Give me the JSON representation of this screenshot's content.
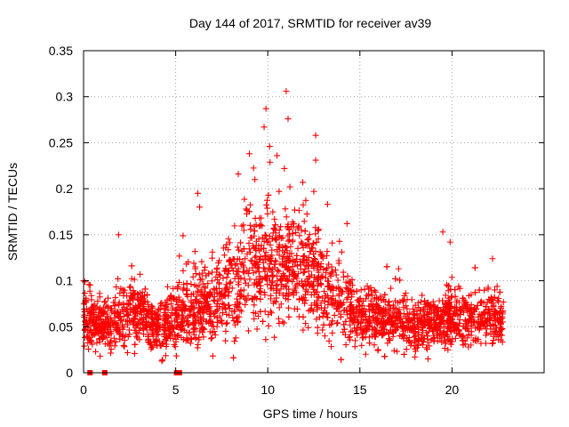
{
  "chart_data": {
    "type": "scatter",
    "title": "Day 144 of 2017, SRMTID for receiver av39",
    "xlabel": "GPS time / hours",
    "ylabel": "SRMTID / TECUs",
    "xlim": [
      0,
      25
    ],
    "ylim": [
      0,
      0.35
    ],
    "xticks": [
      0,
      5,
      10,
      15,
      20
    ],
    "xtick_labels": [
      "0",
      "5",
      "10",
      "15",
      "20"
    ],
    "yticks": [
      0,
      0.05,
      0.1,
      0.15,
      0.2,
      0.25,
      0.3,
      0.35
    ],
    "ytick_labels": [
      "0",
      "0.05",
      "0.1",
      "0.15",
      "0.2",
      "0.25",
      "0.3",
      "0.35"
    ],
    "grid": true,
    "marker": "plus",
    "color": "#ff0000",
    "data_range_hours": [
      0,
      22.8
    ],
    "zero_points_x": [
      0.35,
      1.15,
      5.05,
      5.2
    ],
    "series": [
      {
        "name": "SRMTID",
        "envelope": {
          "x": [
            0,
            1,
            2,
            3,
            4,
            5,
            6,
            7,
            8,
            9,
            10,
            11,
            12,
            13,
            14,
            15,
            16,
            17,
            18,
            19,
            20,
            21,
            22,
            22.8
          ],
          "median": [
            0.06,
            0.052,
            0.062,
            0.068,
            0.048,
            0.06,
            0.072,
            0.07,
            0.09,
            0.115,
            0.118,
            0.115,
            0.112,
            0.095,
            0.078,
            0.062,
            0.058,
            0.056,
            0.052,
            0.052,
            0.062,
            0.058,
            0.058,
            0.055
          ],
          "spread": [
            0.02,
            0.02,
            0.022,
            0.022,
            0.018,
            0.022,
            0.028,
            0.028,
            0.035,
            0.04,
            0.042,
            0.04,
            0.038,
            0.032,
            0.028,
            0.022,
            0.02,
            0.02,
            0.018,
            0.018,
            0.022,
            0.02,
            0.02,
            0.018
          ]
        },
        "density_per_hour": 130,
        "notable_points": [
          {
            "x": 11.0,
            "y": 0.306
          },
          {
            "x": 11.1,
            "y": 0.276
          },
          {
            "x": 9.9,
            "y": 0.287
          },
          {
            "x": 9.8,
            "y": 0.267
          },
          {
            "x": 12.6,
            "y": 0.258
          },
          {
            "x": 10.1,
            "y": 0.246
          },
          {
            "x": 9.0,
            "y": 0.238
          },
          {
            "x": 12.6,
            "y": 0.231
          },
          {
            "x": 10.5,
            "y": 0.236
          },
          {
            "x": 10.9,
            "y": 0.222
          },
          {
            "x": 8.4,
            "y": 0.216
          },
          {
            "x": 11.2,
            "y": 0.202
          },
          {
            "x": 9.3,
            "y": 0.21
          },
          {
            "x": 11.9,
            "y": 0.207
          },
          {
            "x": 12.5,
            "y": 0.197
          },
          {
            "x": 6.2,
            "y": 0.195
          },
          {
            "x": 6.3,
            "y": 0.18
          },
          {
            "x": 1.9,
            "y": 0.15
          },
          {
            "x": 19.5,
            "y": 0.153
          },
          {
            "x": 19.9,
            "y": 0.142
          },
          {
            "x": 14.3,
            "y": 0.162
          },
          {
            "x": 5.4,
            "y": 0.149
          },
          {
            "x": 0.0,
            "y": 0.1
          },
          {
            "x": 22.2,
            "y": 0.124
          },
          {
            "x": 17.1,
            "y": 0.113
          },
          {
            "x": 18.7,
            "y": 0.015
          },
          {
            "x": 0.9,
            "y": 0.018
          },
          {
            "x": 13.1,
            "y": 0.04
          },
          {
            "x": 4.0,
            "y": 0.03
          }
        ]
      }
    ]
  }
}
